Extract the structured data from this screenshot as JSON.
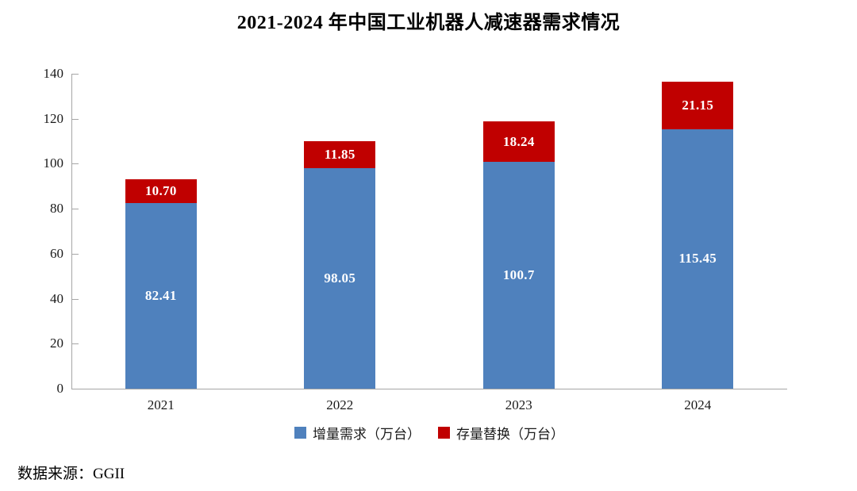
{
  "chart_data": {
    "type": "bar",
    "stacked": true,
    "title": "2021-2024 年中国工业机器人减速器需求情况",
    "categories": [
      "2021",
      "2022",
      "2023",
      "2024"
    ],
    "series": [
      {
        "name": "增量需求（万台）",
        "color": "#4F81BD",
        "values": [
          82.41,
          98.05,
          100.7,
          115.45
        ],
        "value_labels": [
          "82.41",
          "98.05",
          "100.7",
          "115.45"
        ]
      },
      {
        "name": "存量替换（万台）",
        "color": "#C00000",
        "values": [
          10.7,
          11.85,
          18.24,
          21.15
        ],
        "value_labels": [
          "10.70",
          "11.85",
          "18.24",
          "21.15"
        ]
      }
    ],
    "totals": [
      93.11,
      109.9,
      118.94,
      136.6
    ],
    "xlabel": "",
    "ylabel": "",
    "ylim": [
      0,
      140
    ],
    "yticks": [
      0,
      20,
      40,
      60,
      80,
      100,
      120,
      140
    ],
    "grid": false,
    "legend_position": "bottom",
    "value_label_color": "#FFFFFF",
    "axis_color": "#A6A6A6"
  },
  "source": {
    "text": "数据来源：GGII"
  }
}
